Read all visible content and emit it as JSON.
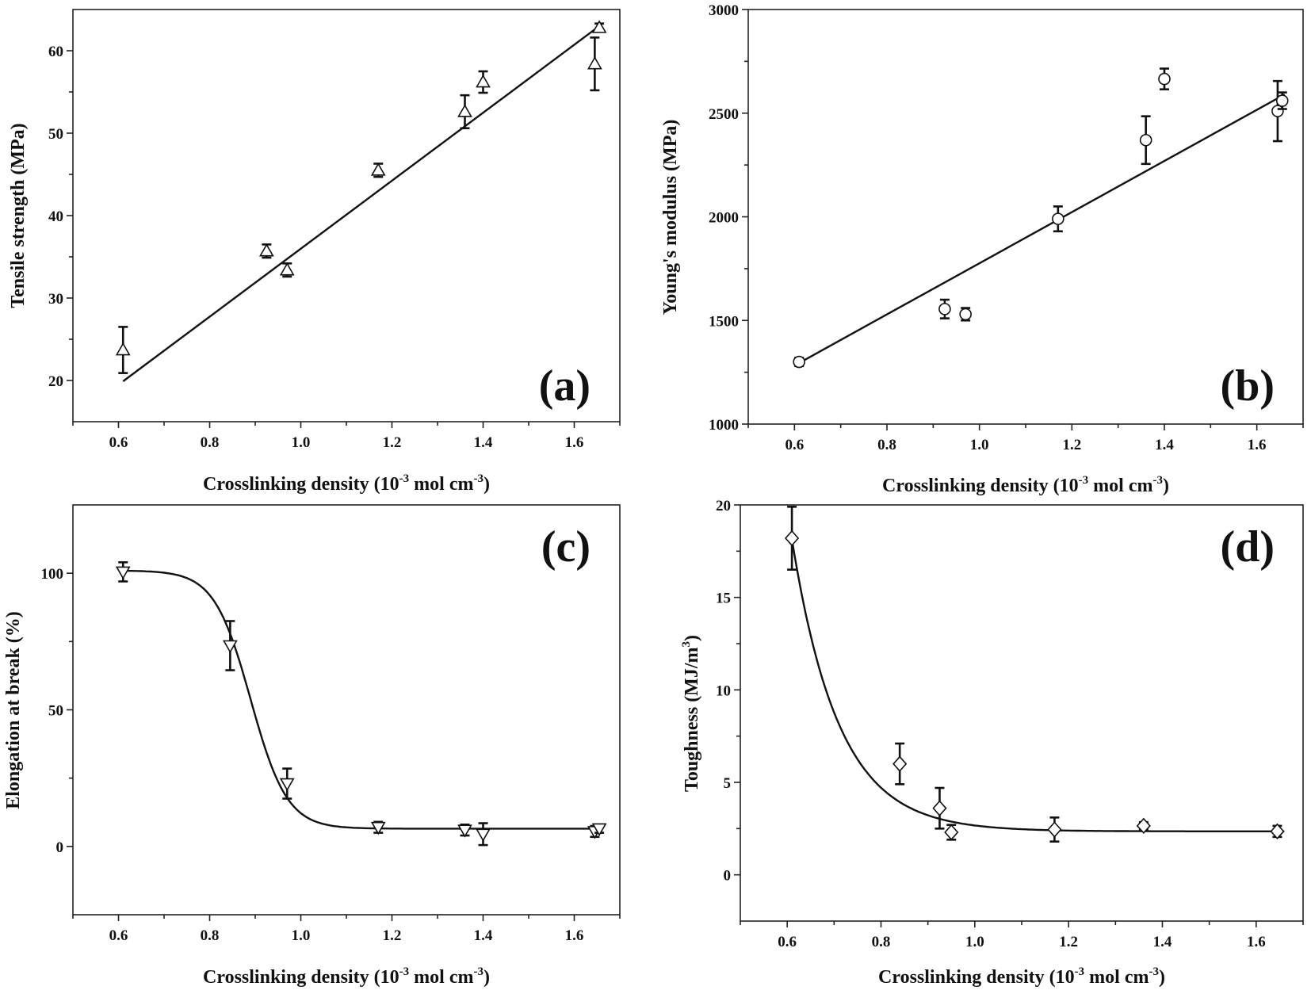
{
  "chart_data": [
    {
      "id": "a",
      "type": "scatter",
      "panel_label": "(a)",
      "xlabel": "Crosslinking density (10",
      "xlabel_sup1": "-3",
      "xlabel_mid": " mol cm",
      "xlabel_sup2": "-3",
      "xlabel_end": ")",
      "ylabel": "Tensile strength (MPa)",
      "xlim": [
        0.5,
        1.7
      ],
      "ylim": [
        15,
        65
      ],
      "xticks": [
        "0.6",
        "0.8",
        "1.0",
        "1.2",
        "1.4",
        "1.6"
      ],
      "yticks": [
        "20",
        "30",
        "40",
        "50",
        "60"
      ],
      "marker": "triangle-up",
      "fit": "linear",
      "points": [
        {
          "x": 0.61,
          "y": 23.7,
          "err": 2.8
        },
        {
          "x": 0.925,
          "y": 35.7,
          "err": 0.8
        },
        {
          "x": 0.97,
          "y": 33.4,
          "err": 0.8
        },
        {
          "x": 1.17,
          "y": 45.5,
          "err": 0.8
        },
        {
          "x": 1.36,
          "y": 52.6,
          "err": 2.0
        },
        {
          "x": 1.4,
          "y": 56.2,
          "err": 1.3
        },
        {
          "x": 1.645,
          "y": 58.4,
          "err": 3.2
        },
        {
          "x": 1.655,
          "y": 62.8,
          "err": 0.5
        }
      ],
      "fit_line": [
        {
          "x": 0.61,
          "y": 19.9
        },
        {
          "x": 1.66,
          "y": 63.2
        }
      ]
    },
    {
      "id": "b",
      "type": "scatter",
      "panel_label": "(b)",
      "xlabel": "Crosslinking density (10",
      "xlabel_sup1": "-3",
      "xlabel_mid": " mol cm",
      "xlabel_sup2": "-3",
      "xlabel_end": ")",
      "ylabel": "Young's modulus (MPa)",
      "xlim": [
        0.5,
        1.7
      ],
      "ylim": [
        1000,
        3000
      ],
      "xticks": [
        "0.6",
        "0.8",
        "1.0",
        "1.2",
        "1.4",
        "1.6"
      ],
      "yticks": [
        "1000",
        "1500",
        "2000",
        "2500",
        "3000"
      ],
      "marker": "circle",
      "fit": "linear",
      "points": [
        {
          "x": 0.61,
          "y": 1300,
          "err": 20
        },
        {
          "x": 0.925,
          "y": 1555,
          "err": 45
        },
        {
          "x": 0.97,
          "y": 1530,
          "err": 30
        },
        {
          "x": 1.17,
          "y": 1990,
          "err": 60
        },
        {
          "x": 1.36,
          "y": 2370,
          "err": 115
        },
        {
          "x": 1.4,
          "y": 2665,
          "err": 50
        },
        {
          "x": 1.645,
          "y": 2510,
          "err": 145
        },
        {
          "x": 1.655,
          "y": 2560,
          "err": 40
        }
      ],
      "fit_line": [
        {
          "x": 0.61,
          "y": 1295
        },
        {
          "x": 1.66,
          "y": 2590
        }
      ]
    },
    {
      "id": "c",
      "type": "scatter",
      "panel_label": "(c)",
      "xlabel": "Crosslinking density (10",
      "xlabel_sup1": "-3",
      "xlabel_mid": " mol cm",
      "xlabel_sup2": "-3",
      "xlabel_end": ")",
      "ylabel": "Elongation at break (%)",
      "xlim": [
        0.5,
        1.7
      ],
      "ylim": [
        -25,
        125
      ],
      "xticks": [
        "0.6",
        "0.8",
        "1.0",
        "1.2",
        "1.4",
        "1.6"
      ],
      "yticks": [
        "0",
        "50",
        "100"
      ],
      "marker": "triangle-down",
      "fit": "sigmoid",
      "fit_params": {
        "bottom": 6.5,
        "top": 101,
        "x0": 0.89,
        "dx": 0.04,
        "x_from": 0.61,
        "x_to": 1.66
      },
      "points": [
        {
          "x": 0.61,
          "y": 100.5,
          "err": 3.5
        },
        {
          "x": 0.845,
          "y": 73.5,
          "err": 9
        },
        {
          "x": 0.97,
          "y": 23,
          "err": 5.5
        },
        {
          "x": 1.17,
          "y": 7,
          "err": 2
        },
        {
          "x": 1.36,
          "y": 6,
          "err": 2
        },
        {
          "x": 1.4,
          "y": 4.5,
          "err": 4
        },
        {
          "x": 1.645,
          "y": 5.5,
          "err": 2
        },
        {
          "x": 1.655,
          "y": 6.5,
          "err": 1.5
        }
      ]
    },
    {
      "id": "d",
      "type": "scatter",
      "panel_label": "(d)",
      "xlabel": "Crosslinking density (10",
      "xlabel_sup1": "-3",
      "xlabel_mid": " mol cm",
      "xlabel_sup2": "-3",
      "xlabel_end": ")",
      "ylabel": "Toughness (MJ/m",
      "ylabel_sup": "3",
      "ylabel_end": ")",
      "xlim": [
        0.5,
        1.7
      ],
      "ylim": [
        -2.5,
        20
      ],
      "xticks": [
        "0.6",
        "0.8",
        "1.0",
        "1.2",
        "1.4",
        "1.6"
      ],
      "yticks": [
        "0",
        "5",
        "10",
        "15",
        "20"
      ],
      "marker": "diamond",
      "fit": "exponential-decay",
      "fit_params": {
        "y0": 2.35,
        "amplitude": 15.8,
        "x_start": 0.61,
        "t": 0.1,
        "x_from": 0.61,
        "x_to": 1.66
      },
      "points": [
        {
          "x": 0.61,
          "y": 18.2,
          "err": 1.7
        },
        {
          "x": 0.84,
          "y": 6.0,
          "err": 1.1
        },
        {
          "x": 0.925,
          "y": 3.6,
          "err": 1.1
        },
        {
          "x": 0.95,
          "y": 2.3,
          "err": 0.4
        },
        {
          "x": 1.17,
          "y": 2.45,
          "err": 0.65
        },
        {
          "x": 1.36,
          "y": 2.65,
          "err": 0.2
        },
        {
          "x": 1.645,
          "y": 2.35,
          "err": 0.3
        }
      ]
    }
  ]
}
